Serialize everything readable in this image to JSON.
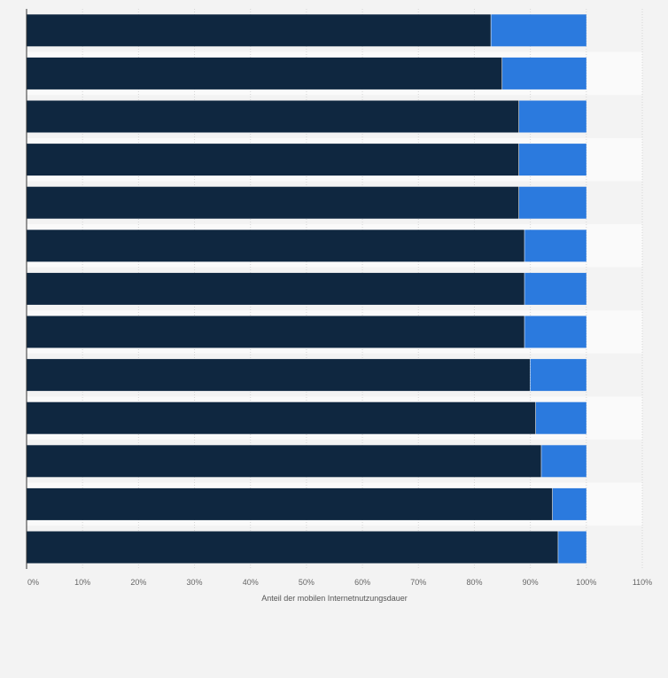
{
  "chart_data": {
    "type": "bar",
    "orientation": "horizontal",
    "stacked": true,
    "title": "",
    "xlabel": "Anteil der mobilen Internetnutzungsdauer",
    "ylabel": "",
    "xlim": [
      0,
      110
    ],
    "x_ticks": [
      "0%",
      "10%",
      "20%",
      "30%",
      "40%",
      "50%",
      "60%",
      "70%",
      "80%",
      "90%",
      "100%",
      "110%"
    ],
    "categories": [
      "",
      "",
      "",
      "",
      "",
      "",
      "",
      "",
      "",
      "",
      "",
      "",
      ""
    ],
    "series": [
      {
        "values": [
          83,
          85,
          88,
          88,
          88,
          89,
          89,
          89,
          90,
          91,
          92,
          94,
          95
        ],
        "color": "#0f2740"
      },
      {
        "values": [
          17,
          15,
          12,
          12,
          12,
          11,
          11,
          11,
          10,
          9,
          8,
          6,
          5
        ],
        "color": "#2b7ade"
      }
    ],
    "grid": true,
    "legend": "none"
  }
}
